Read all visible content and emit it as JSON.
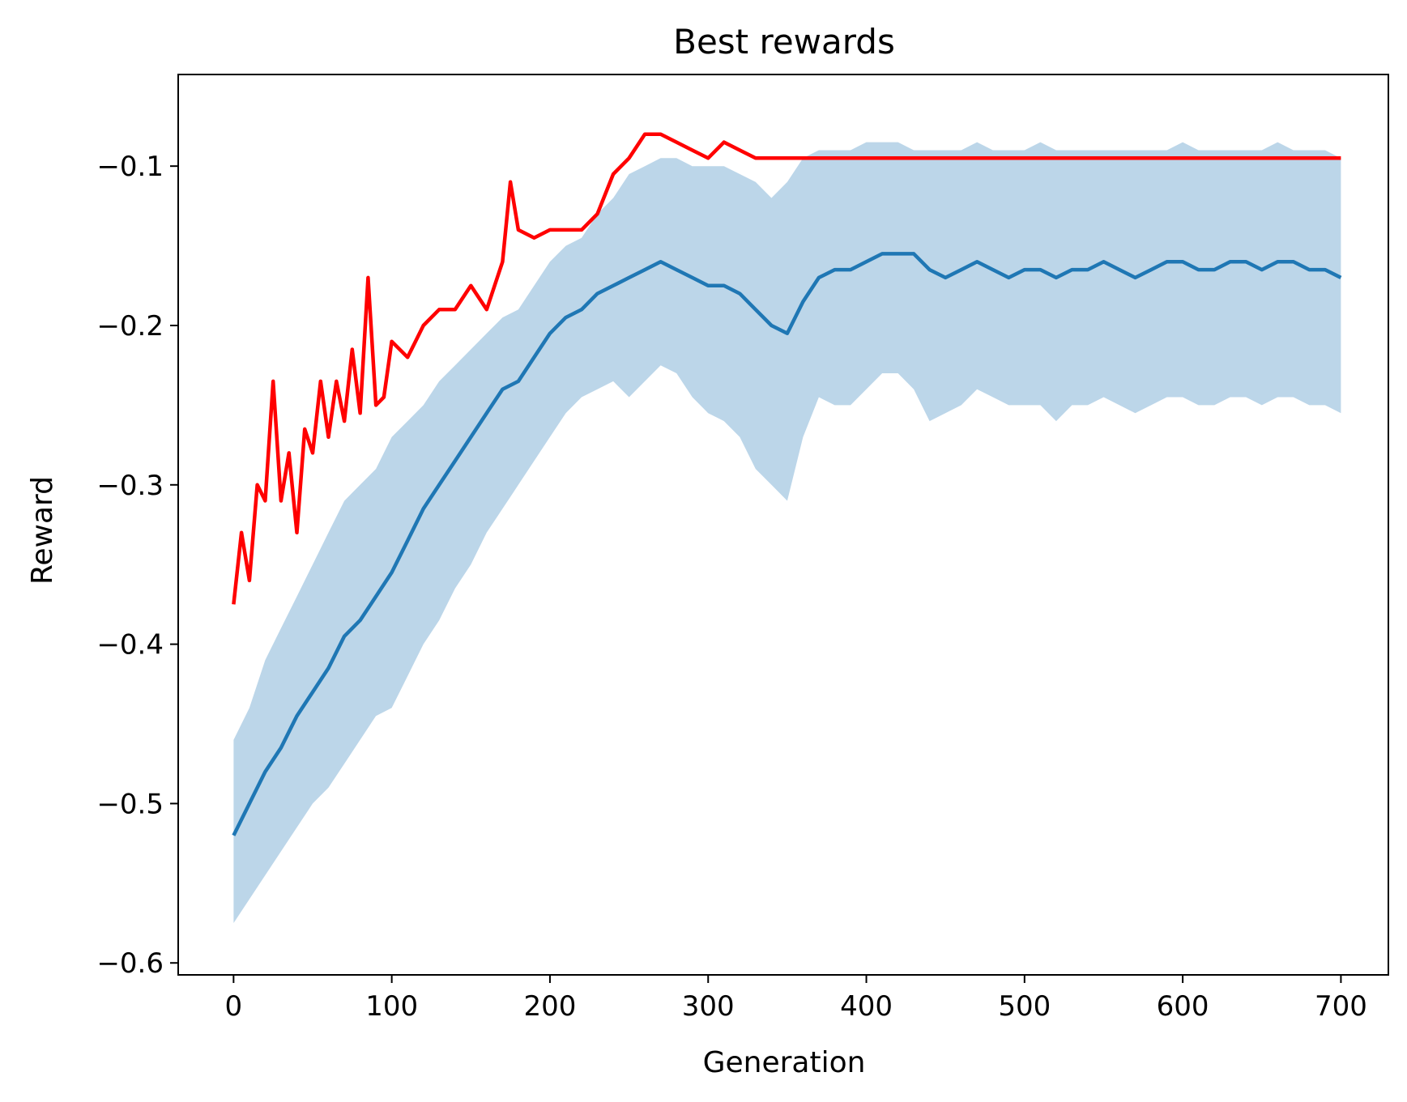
{
  "chart_data": {
    "type": "line",
    "title": "Best rewards",
    "xlabel": "Generation",
    "ylabel": "Reward",
    "xlim": [
      -35,
      730
    ],
    "ylim": [
      -0.6075,
      -0.0425
    ],
    "xticks": [
      0,
      100,
      200,
      300,
      400,
      500,
      600,
      700
    ],
    "yticks": [
      -0.6,
      -0.5,
      -0.4,
      -0.3,
      -0.2,
      -0.1
    ],
    "ytick_labels": [
      "−0.6",
      "−0.5",
      "−0.4",
      "−0.3",
      "−0.2",
      "−0.1"
    ],
    "grid": false,
    "legend": "none",
    "colors": {
      "best": "#ff0000",
      "mean": "#1f77b4",
      "band": "#bcd6e9"
    },
    "series": [
      {
        "role": "best",
        "x": [
          0,
          5,
          10,
          15,
          20,
          25,
          30,
          35,
          40,
          45,
          50,
          55,
          60,
          65,
          70,
          75,
          80,
          85,
          90,
          95,
          100,
          110,
          120,
          130,
          140,
          150,
          160,
          170,
          175,
          180,
          190,
          200,
          210,
          220,
          230,
          240,
          245,
          250,
          260,
          270,
          280,
          290,
          300,
          310,
          320,
          330,
          700
        ],
        "y": [
          -0.375,
          -0.33,
          -0.36,
          -0.3,
          -0.31,
          -0.235,
          -0.31,
          -0.28,
          -0.33,
          -0.265,
          -0.28,
          -0.235,
          -0.27,
          -0.235,
          -0.26,
          -0.215,
          -0.255,
          -0.17,
          -0.25,
          -0.245,
          -0.21,
          -0.22,
          -0.2,
          -0.19,
          -0.19,
          -0.175,
          -0.19,
          -0.16,
          -0.11,
          -0.14,
          -0.145,
          -0.14,
          -0.14,
          -0.14,
          -0.13,
          -0.105,
          -0.1,
          -0.095,
          -0.08,
          -0.08,
          -0.085,
          -0.09,
          -0.095,
          -0.085,
          -0.09,
          -0.095,
          -0.095
        ]
      },
      {
        "role": "mean",
        "x": [
          0,
          10,
          20,
          30,
          40,
          50,
          60,
          70,
          80,
          90,
          100,
          110,
          120,
          130,
          140,
          150,
          160,
          170,
          180,
          190,
          200,
          210,
          220,
          230,
          240,
          250,
          260,
          270,
          280,
          290,
          300,
          310,
          320,
          330,
          340,
          350,
          360,
          370,
          380,
          390,
          400,
          410,
          420,
          430,
          440,
          450,
          460,
          470,
          480,
          490,
          500,
          510,
          520,
          530,
          540,
          550,
          560,
          570,
          580,
          590,
          600,
          610,
          620,
          630,
          640,
          650,
          660,
          670,
          680,
          690,
          700
        ],
        "y": [
          -0.52,
          -0.5,
          -0.48,
          -0.465,
          -0.445,
          -0.43,
          -0.415,
          -0.395,
          -0.385,
          -0.37,
          -0.355,
          -0.335,
          -0.315,
          -0.3,
          -0.285,
          -0.27,
          -0.255,
          -0.24,
          -0.235,
          -0.22,
          -0.205,
          -0.195,
          -0.19,
          -0.18,
          -0.175,
          -0.17,
          -0.165,
          -0.16,
          -0.165,
          -0.17,
          -0.175,
          -0.175,
          -0.18,
          -0.19,
          -0.2,
          -0.205,
          -0.185,
          -0.17,
          -0.165,
          -0.165,
          -0.16,
          -0.155,
          -0.155,
          -0.155,
          -0.165,
          -0.17,
          -0.165,
          -0.16,
          -0.165,
          -0.17,
          -0.165,
          -0.165,
          -0.17,
          -0.165,
          -0.165,
          -0.16,
          -0.165,
          -0.17,
          -0.165,
          -0.16,
          -0.16,
          -0.165,
          -0.165,
          -0.16,
          -0.16,
          -0.165,
          -0.16,
          -0.16,
          -0.165,
          -0.165,
          -0.17
        ]
      },
      {
        "role": "band_upper",
        "x": [
          0,
          10,
          20,
          30,
          40,
          50,
          60,
          70,
          80,
          90,
          100,
          110,
          120,
          130,
          140,
          150,
          160,
          170,
          180,
          190,
          200,
          210,
          220,
          230,
          240,
          250,
          260,
          270,
          280,
          290,
          300,
          310,
          320,
          330,
          340,
          350,
          360,
          370,
          380,
          390,
          400,
          410,
          420,
          430,
          440,
          450,
          460,
          470,
          480,
          490,
          500,
          510,
          520,
          530,
          540,
          550,
          560,
          570,
          580,
          590,
          600,
          610,
          620,
          630,
          640,
          650,
          660,
          670,
          680,
          690,
          700
        ],
        "y": [
          -0.46,
          -0.44,
          -0.41,
          -0.39,
          -0.37,
          -0.35,
          -0.33,
          -0.31,
          -0.3,
          -0.29,
          -0.27,
          -0.26,
          -0.25,
          -0.235,
          -0.225,
          -0.215,
          -0.205,
          -0.195,
          -0.19,
          -0.175,
          -0.16,
          -0.15,
          -0.145,
          -0.13,
          -0.12,
          -0.105,
          -0.1,
          -0.095,
          -0.095,
          -0.1,
          -0.1,
          -0.1,
          -0.105,
          -0.11,
          -0.12,
          -0.11,
          -0.095,
          -0.09,
          -0.09,
          -0.09,
          -0.085,
          -0.085,
          -0.085,
          -0.09,
          -0.09,
          -0.09,
          -0.09,
          -0.085,
          -0.09,
          -0.09,
          -0.09,
          -0.085,
          -0.09,
          -0.09,
          -0.09,
          -0.09,
          -0.09,
          -0.09,
          -0.09,
          -0.09,
          -0.085,
          -0.09,
          -0.09,
          -0.09,
          -0.09,
          -0.09,
          -0.085,
          -0.09,
          -0.09,
          -0.09,
          -0.095
        ]
      },
      {
        "role": "band_lower",
        "x": [
          0,
          10,
          20,
          30,
          40,
          50,
          60,
          70,
          80,
          90,
          100,
          110,
          120,
          130,
          140,
          150,
          160,
          170,
          180,
          190,
          200,
          210,
          220,
          230,
          240,
          250,
          260,
          270,
          280,
          290,
          300,
          310,
          320,
          330,
          340,
          350,
          360,
          370,
          380,
          390,
          400,
          410,
          420,
          430,
          440,
          450,
          460,
          470,
          480,
          490,
          500,
          510,
          520,
          530,
          540,
          550,
          560,
          570,
          580,
          590,
          600,
          610,
          620,
          630,
          640,
          650,
          660,
          670,
          680,
          690,
          700
        ],
        "y": [
          -0.575,
          -0.56,
          -0.545,
          -0.53,
          -0.515,
          -0.5,
          -0.49,
          -0.475,
          -0.46,
          -0.445,
          -0.44,
          -0.42,
          -0.4,
          -0.385,
          -0.365,
          -0.35,
          -0.33,
          -0.315,
          -0.3,
          -0.285,
          -0.27,
          -0.255,
          -0.245,
          -0.24,
          -0.235,
          -0.245,
          -0.235,
          -0.225,
          -0.23,
          -0.245,
          -0.255,
          -0.26,
          -0.27,
          -0.29,
          -0.3,
          -0.31,
          -0.27,
          -0.245,
          -0.25,
          -0.25,
          -0.24,
          -0.23,
          -0.23,
          -0.24,
          -0.26,
          -0.255,
          -0.25,
          -0.24,
          -0.245,
          -0.25,
          -0.25,
          -0.25,
          -0.26,
          -0.25,
          -0.25,
          -0.245,
          -0.25,
          -0.255,
          -0.25,
          -0.245,
          -0.245,
          -0.25,
          -0.25,
          -0.245,
          -0.245,
          -0.25,
          -0.245,
          -0.245,
          -0.25,
          -0.25,
          -0.255
        ]
      }
    ]
  }
}
